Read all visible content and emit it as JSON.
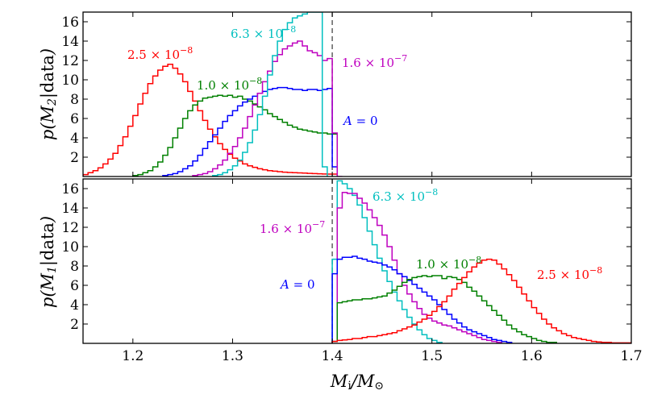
{
  "chart_data": [
    {
      "type": "histogram-step",
      "panel": "top",
      "ylabel": "p(M2|data)",
      "xlim": [
        1.15,
        1.7
      ],
      "ylim": [
        0,
        17
      ],
      "yticks": [
        "2",
        "4",
        "6",
        "8",
        "10",
        "12",
        "14",
        "16"
      ],
      "reference_line_x": 1.4,
      "series": [
        {
          "name": "2.5 × 10^-8",
          "color": "#ff0000",
          "bin_start": 1.15,
          "bin_width": 0.005,
          "values": [
            0.2,
            0.4,
            0.6,
            0.9,
            1.3,
            1.8,
            2.4,
            3.2,
            4.1,
            5.2,
            6.3,
            7.5,
            8.6,
            9.6,
            10.4,
            11.0,
            11.4,
            11.6,
            11.2,
            10.6,
            9.8,
            8.8,
            7.8,
            6.8,
            5.8,
            4.9,
            4.1,
            3.4,
            2.8,
            2.3,
            1.9,
            1.6,
            1.3,
            1.1,
            0.95,
            0.8,
            0.7,
            0.6,
            0.55,
            0.5,
            0.45,
            0.42,
            0.4,
            0.38,
            0.35,
            0.32,
            0.3,
            0.28,
            0.26,
            0.25,
            0.25
          ]
        },
        {
          "name": "1.0 × 10^-8",
          "color": "#008000",
          "bin_start": 1.2,
          "bin_width": 0.005,
          "values": [
            0.1,
            0.2,
            0.4,
            0.6,
            1.0,
            1.5,
            2.2,
            3.0,
            4.0,
            5.0,
            6.0,
            6.8,
            7.4,
            7.8,
            8.1,
            8.2,
            8.3,
            8.4,
            8.3,
            8.4,
            8.2,
            8.3,
            8.0,
            7.8,
            7.5,
            7.2,
            6.9,
            6.5,
            6.2,
            5.9,
            5.6,
            5.3,
            5.1,
            4.9,
            4.8,
            4.7,
            4.6,
            4.5,
            4.5,
            4.4,
            4.4
          ]
        },
        {
          "name": "A = 0",
          "color": "#0000ff",
          "bin_start": 1.23,
          "bin_width": 0.005,
          "values": [
            0.1,
            0.2,
            0.3,
            0.5,
            0.8,
            1.1,
            1.6,
            2.2,
            2.9,
            3.6,
            4.3,
            5.0,
            5.7,
            6.3,
            6.8,
            7.3,
            7.7,
            8.0,
            8.3,
            8.6,
            8.8,
            9.0,
            9.1,
            9.2,
            9.2,
            9.1,
            9.0,
            9.0,
            8.9,
            9.0,
            9.0,
            8.9,
            9.0,
            9.1,
            1.0
          ]
        },
        {
          "name": "1.6 × 10^-7",
          "color": "#bf00bf",
          "bin_start": 1.26,
          "bin_width": 0.005,
          "values": [
            0.1,
            0.2,
            0.3,
            0.5,
            0.8,
            1.2,
            1.7,
            2.4,
            3.1,
            4.0,
            5.0,
            6.2,
            7.4,
            8.6,
            9.8,
            10.9,
            11.9,
            12.6,
            13.2,
            13.5,
            13.8,
            14.0,
            13.5,
            13.0,
            12.8,
            12.5,
            12.0,
            12.2,
            4.5,
            0.0
          ]
        },
        {
          "name": "6.3 × 10^-8",
          "color": "#00bfbf",
          "bin_start": 1.28,
          "bin_width": 0.005,
          "values": [
            0.1,
            0.2,
            0.4,
            0.7,
            1.1,
            1.7,
            2.5,
            3.5,
            4.8,
            6.4,
            8.3,
            10.5,
            12.5,
            14.0,
            15.2,
            15.9,
            16.4,
            16.6,
            16.8,
            17.0,
            17.0,
            17.0,
            1.0
          ]
        }
      ],
      "annotations": [
        {
          "text": "2.5 × 10",
          "exp": "−8",
          "color": "#ff0000"
        },
        {
          "text": "6.3 × 10",
          "exp": "−8",
          "color": "#00bfbf"
        },
        {
          "text": "1.0 × 10",
          "exp": "−8",
          "color": "#008000"
        },
        {
          "text": "1.6 × 10",
          "exp": "−7",
          "color": "#bf00bf"
        },
        {
          "text": "A = 0",
          "exp": "",
          "color": "#0000ff"
        }
      ]
    },
    {
      "type": "histogram-step",
      "panel": "bottom",
      "ylabel": "p(M1|data)",
      "xlabel": "Mi/M⊙",
      "xlim": [
        1.15,
        1.7
      ],
      "ylim": [
        0,
        17
      ],
      "xticks": [
        "1.2",
        "1.3",
        "1.4",
        "1.5",
        "1.6",
        "1.7"
      ],
      "yticks": [
        "2",
        "4",
        "6",
        "8",
        "10",
        "12",
        "14",
        "16"
      ],
      "reference_line_x": 1.4,
      "series": [
        {
          "name": "6.3 × 10^-8",
          "color": "#00bfbf",
          "bin_start": 1.4,
          "bin_width": 0.005,
          "values": [
            8.7,
            16.8,
            16.5,
            16.0,
            15.3,
            14.3,
            13.0,
            11.6,
            10.2,
            8.8,
            7.5,
            6.4,
            5.3,
            4.4,
            3.5,
            2.7,
            2.0,
            1.4,
            0.9,
            0.5,
            0.3,
            0.1
          ]
        },
        {
          "name": "1.6 × 10^-7",
          "color": "#bf00bf",
          "bin_start": 1.4,
          "bin_width": 0.005,
          "values": [
            0.2,
            14.0,
            15.6,
            15.5,
            15.5,
            15.0,
            14.5,
            13.8,
            13.0,
            12.2,
            11.2,
            10.0,
            8.6,
            7.2,
            6.0,
            5.1,
            4.3,
            3.6,
            3.0,
            2.6,
            2.3,
            2.1,
            1.9,
            1.8,
            1.6,
            1.4,
            1.2,
            1.0,
            0.8,
            0.6,
            0.4,
            0.3,
            0.2,
            0.1
          ]
        },
        {
          "name": "A = 0",
          "color": "#0000ff",
          "bin_start": 1.4,
          "bin_width": 0.005,
          "values": [
            7.2,
            8.7,
            8.9,
            8.9,
            9.0,
            8.8,
            8.7,
            8.5,
            8.4,
            8.3,
            8.1,
            7.9,
            7.6,
            7.2,
            6.9,
            6.5,
            6.1,
            5.7,
            5.3,
            4.9,
            4.5,
            4.0,
            3.5,
            3.0,
            2.5,
            2.1,
            1.7,
            1.4,
            1.2,
            1.0,
            0.8,
            0.6,
            0.4,
            0.3,
            0.2,
            0.1
          ]
        },
        {
          "name": "1.0 × 10^-8",
          "color": "#008000",
          "bin_start": 1.4,
          "bin_width": 0.005,
          "values": [
            0.2,
            4.2,
            4.3,
            4.4,
            4.5,
            4.5,
            4.6,
            4.6,
            4.7,
            4.8,
            4.9,
            5.2,
            5.5,
            5.9,
            6.3,
            6.6,
            6.8,
            6.9,
            7.0,
            6.9,
            7.0,
            7.0,
            6.7,
            6.9,
            6.8,
            6.6,
            6.3,
            5.8,
            5.4,
            4.9,
            4.4,
            3.9,
            3.4,
            2.9,
            2.4,
            1.9,
            1.5,
            1.2,
            0.9,
            0.7,
            0.5,
            0.3,
            0.2,
            0.1,
            0.1
          ]
        },
        {
          "name": "2.5 × 10^-8",
          "color": "#ff0000",
          "bin_start": 1.4,
          "bin_width": 0.005,
          "values": [
            0.2,
            0.3,
            0.35,
            0.4,
            0.5,
            0.5,
            0.6,
            0.7,
            0.7,
            0.8,
            0.9,
            1.0,
            1.1,
            1.3,
            1.5,
            1.7,
            1.9,
            2.2,
            2.5,
            2.9,
            3.3,
            3.8,
            4.3,
            4.9,
            5.6,
            6.2,
            6.8,
            7.4,
            7.9,
            8.3,
            8.6,
            8.7,
            8.6,
            8.2,
            7.7,
            7.1,
            6.5,
            5.8,
            5.1,
            4.4,
            3.7,
            3.1,
            2.5,
            2.0,
            1.6,
            1.3,
            1.0,
            0.8,
            0.6,
            0.5,
            0.4,
            0.3,
            0.2,
            0.15,
            0.1,
            0.1,
            0.05,
            0.05,
            0.05,
            0.05
          ]
        }
      ],
      "annotations": [
        {
          "text": "6.3 × 10",
          "exp": "−8",
          "color": "#00bfbf"
        },
        {
          "text": "1.6 × 10",
          "exp": "−7",
          "color": "#bf00bf"
        },
        {
          "text": "1.0 × 10",
          "exp": "−8",
          "color": "#008000"
        },
        {
          "text": "2.5 × 10",
          "exp": "−8",
          "color": "#ff0000"
        },
        {
          "text": "A = 0",
          "exp": "",
          "color": "#0000ff"
        }
      ]
    }
  ]
}
